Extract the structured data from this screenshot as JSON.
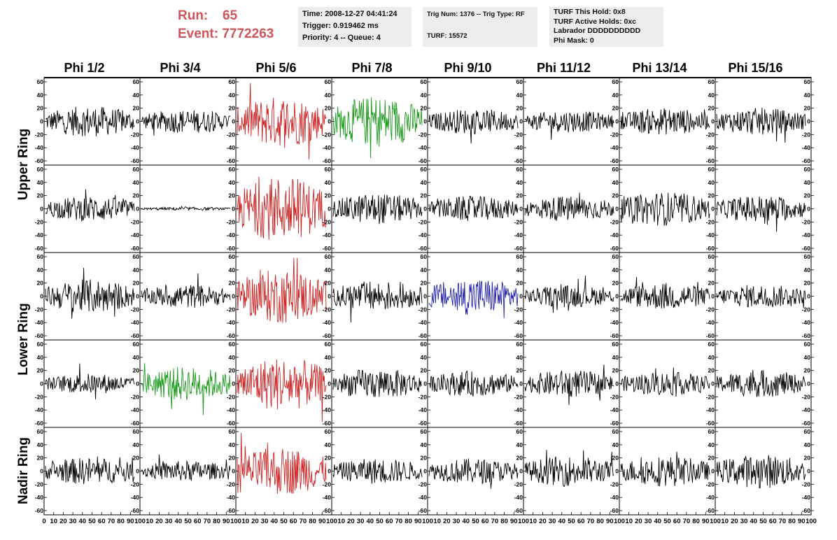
{
  "run": {
    "run_label": "Run:",
    "run_value": "65",
    "event_label": "Event:",
    "event_value": "7772263"
  },
  "time_box": {
    "time": "Time: 2008-12-27 04:41:24",
    "trigger": "Trigger: 0.919462 ms",
    "priority": "Priority: 4 -- Queue: 4"
  },
  "trig_box": {
    "trig": "Trig Num: 1376 -- Trig Type: RF",
    "turf": "TURF: 15572"
  },
  "turf_box": {
    "hold": "TURF This Hold: 0x8",
    "active": "TURF Active Holds: 0xc",
    "labrador": "Labrador DDDDDDDDDD",
    "phimask": "Phi Mask: 0"
  },
  "phi_labels": [
    "Phi 1/2",
    "Phi 3/4",
    "Phi 5/6",
    "Phi 7/8",
    "Phi 9/10",
    "Phi 11/12",
    "Phi 13/14",
    "Phi 15/16"
  ],
  "ring_labels": {
    "upper": "Upper Ring",
    "lower": "Lower Ring",
    "nadir": "Nadir Ring"
  },
  "chart_data": {
    "type": "line",
    "grid": false,
    "ylim": [
      -60,
      60
    ],
    "y_tick_labels": [
      "60",
      "40",
      "20",
      "0",
      "-20",
      "-40",
      "-60"
    ],
    "x_tick_labels_first": [
      "0",
      "10",
      "20",
      "30",
      "40",
      "50",
      "60",
      "70",
      "80",
      "90",
      "100"
    ],
    "x_tick_labels_rest": [
      "10",
      "20",
      "30",
      "40",
      "50",
      "60",
      "70",
      "80",
      "90",
      "100"
    ],
    "xlim": [
      0,
      100
    ],
    "colors": {
      "default": "#000000",
      "red": "#cc2222",
      "green": "#1a9a1a",
      "blue": "#2222aa"
    },
    "rows": [
      {
        "amps": [
          18,
          14,
          30,
          30,
          15,
          13,
          16,
          16
        ],
        "colors": [
          "default",
          "default",
          "red",
          "green",
          "default",
          "default",
          "default",
          "default"
        ]
      },
      {
        "amps": [
          15,
          2,
          38,
          18,
          15,
          15,
          20,
          16
        ],
        "colors": [
          "default",
          "default",
          "red",
          "default",
          "default",
          "default",
          "default",
          "default"
        ]
      },
      {
        "amps": [
          20,
          14,
          32,
          18,
          22,
          13,
          16,
          14
        ],
        "colors": [
          "default",
          "default",
          "red",
          "default",
          "blue",
          "default",
          "default",
          "default"
        ]
      },
      {
        "amps": [
          12,
          20,
          32,
          18,
          15,
          16,
          14,
          16
        ],
        "colors": [
          "default",
          "green",
          "red",
          "default",
          "default",
          "default",
          "default",
          "default"
        ]
      },
      {
        "amps": [
          16,
          12,
          28,
          15,
          15,
          18,
          18,
          20
        ],
        "colors": [
          "default",
          "default",
          "red",
          "default",
          "default",
          "default",
          "default",
          "default"
        ]
      }
    ]
  }
}
